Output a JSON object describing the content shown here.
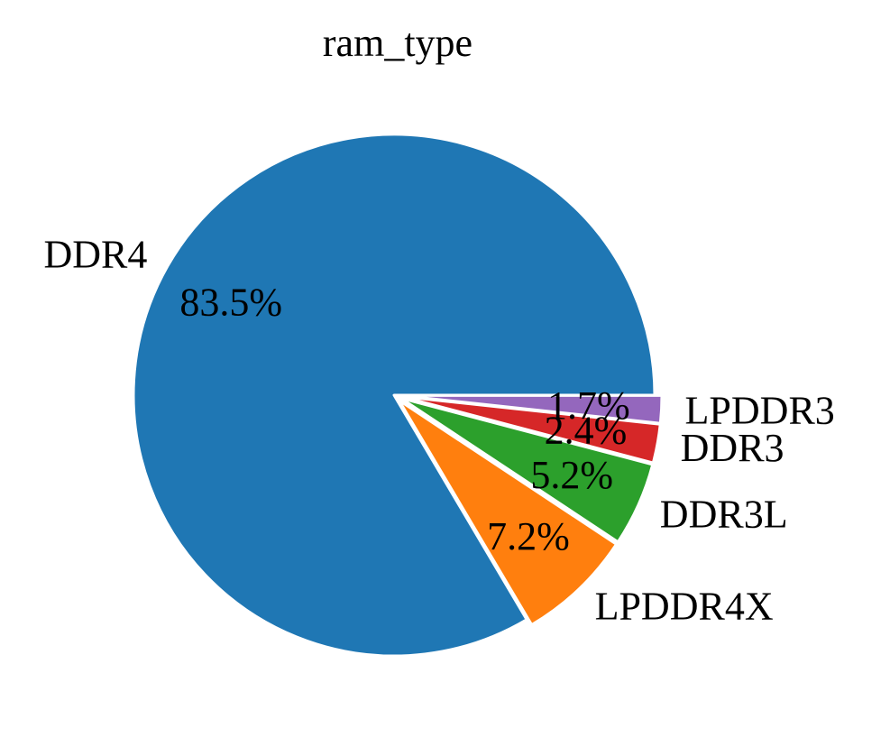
{
  "chart_data": {
    "type": "pie",
    "title": "ram_type",
    "slices": [
      {
        "label": "DDR4",
        "value": 83.5,
        "pct_label": "83.5%",
        "color": "#1f77b4"
      },
      {
        "label": "LPDDR4X",
        "value": 7.2,
        "pct_label": "7.2%",
        "color": "#ff7f0e"
      },
      {
        "label": "DDR3L",
        "value": 5.2,
        "pct_label": "5.2%",
        "color": "#2ca02c"
      },
      {
        "label": "DDR3",
        "value": 2.4,
        "pct_label": "2.4%",
        "color": "#d62728"
      },
      {
        "label": "LPDDR3",
        "value": 1.7,
        "pct_label": "1.7%",
        "color": "#9467bd"
      }
    ],
    "start_angle_deg": 0,
    "direction": "counterclockwise",
    "exploded": [
      "LPDDR4X",
      "DDR3L",
      "DDR3",
      "LPDDR3"
    ],
    "legend": "none",
    "slice_edge_color": "#ffffff"
  }
}
